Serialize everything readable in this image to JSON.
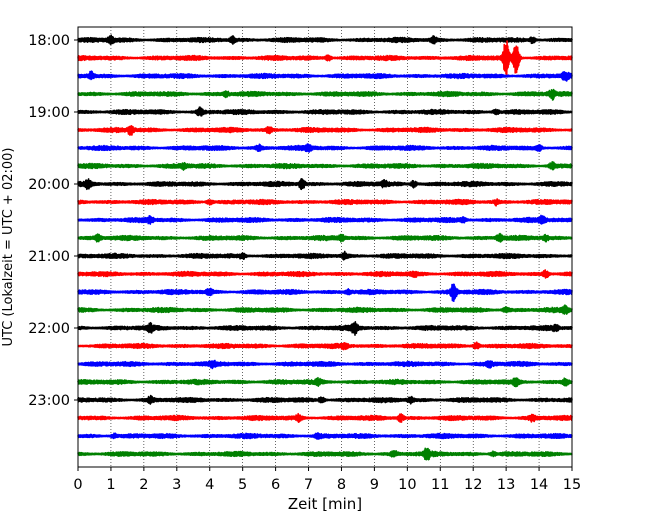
{
  "chart_data": {
    "type": "line",
    "title": "",
    "xlabel": "Zeit  [min]",
    "ylabel": "UTC (Lokalzeit = UTC + 02:00)",
    "xlim": [
      0,
      15
    ],
    "x_ticks": [
      0,
      1,
      2,
      3,
      4,
      5,
      6,
      7,
      8,
      9,
      10,
      11,
      12,
      13,
      14,
      15
    ],
    "y_tick_labels": [
      "18:00",
      "19:00",
      "20:00",
      "21:00",
      "22:00",
      "23:00"
    ],
    "grid": "vertical dotted",
    "trace_interval_minutes": 15,
    "trace_colors": [
      "#000000",
      "#ff0000",
      "#0000ff",
      "#008000"
    ],
    "series": [
      {
        "start": "18:00",
        "color": "#000000",
        "events": [
          {
            "x": 1.0,
            "amp": 1.4
          },
          {
            "x": 4.7,
            "amp": 1.3
          },
          {
            "x": 10.8,
            "amp": 1.4
          },
          {
            "x": 13.8,
            "amp": 1.2
          }
        ]
      },
      {
        "start": "18:15",
        "color": "#ff0000",
        "events": [
          {
            "x": 13.0,
            "amp": 8.0
          },
          {
            "x": 13.3,
            "amp": 7.0
          },
          {
            "x": 7.6,
            "amp": 1.2
          }
        ]
      },
      {
        "start": "18:30",
        "color": "#0000ff",
        "events": [
          {
            "x": 0.4,
            "amp": 1.6
          },
          {
            "x": 14.8,
            "amp": 1.6
          }
        ]
      },
      {
        "start": "18:45",
        "color": "#008000",
        "events": [
          {
            "x": 14.4,
            "amp": 1.8
          },
          {
            "x": 4.5,
            "amp": 1.1
          }
        ]
      },
      {
        "start": "19:00",
        "color": "#000000",
        "events": [
          {
            "x": 3.7,
            "amp": 1.6
          },
          {
            "x": 12.7,
            "amp": 1.3
          }
        ]
      },
      {
        "start": "19:15",
        "color": "#ff0000",
        "events": [
          {
            "x": 1.6,
            "amp": 1.8
          },
          {
            "x": 5.8,
            "amp": 1.2
          }
        ]
      },
      {
        "start": "19:30",
        "color": "#0000ff",
        "events": [
          {
            "x": 5.5,
            "amp": 1.1
          },
          {
            "x": 7.0,
            "amp": 1.2
          },
          {
            "x": 14.0,
            "amp": 1.1
          }
        ]
      },
      {
        "start": "19:45",
        "color": "#008000",
        "events": [
          {
            "x": 14.4,
            "amp": 1.4
          },
          {
            "x": 3.2,
            "amp": 1.0
          }
        ]
      },
      {
        "start": "20:00",
        "color": "#000000",
        "events": [
          {
            "x": 0.3,
            "amp": 1.6
          },
          {
            "x": 6.8,
            "amp": 2.2
          },
          {
            "x": 10.2,
            "amp": 1.5
          },
          {
            "x": 9.3,
            "amp": 1.1
          }
        ]
      },
      {
        "start": "20:15",
        "color": "#ff0000",
        "events": [
          {
            "x": 4.0,
            "amp": 1.1
          },
          {
            "x": 12.7,
            "amp": 1.1
          }
        ]
      },
      {
        "start": "20:30",
        "color": "#0000ff",
        "events": [
          {
            "x": 2.2,
            "amp": 1.2
          },
          {
            "x": 14.1,
            "amp": 1.5
          },
          {
            "x": 11.7,
            "amp": 1.0
          }
        ]
      },
      {
        "start": "20:45",
        "color": "#008000",
        "events": [
          {
            "x": 0.6,
            "amp": 1.2
          },
          {
            "x": 8.0,
            "amp": 1.2
          },
          {
            "x": 12.8,
            "amp": 1.5
          },
          {
            "x": 14.2,
            "amp": 1.1
          }
        ]
      },
      {
        "start": "21:00",
        "color": "#000000",
        "events": [
          {
            "x": 8.1,
            "amp": 1.5
          },
          {
            "x": 5.0,
            "amp": 1.1
          }
        ]
      },
      {
        "start": "21:15",
        "color": "#ff0000",
        "events": [
          {
            "x": 14.2,
            "amp": 1.6
          },
          {
            "x": 10.2,
            "amp": 1.1
          }
        ]
      },
      {
        "start": "21:30",
        "color": "#0000ff",
        "events": [
          {
            "x": 11.4,
            "amp": 3.6
          },
          {
            "x": 4.0,
            "amp": 1.2
          },
          {
            "x": 8.2,
            "amp": 1.1
          }
        ]
      },
      {
        "start": "21:45",
        "color": "#008000",
        "events": [
          {
            "x": 14.8,
            "amp": 1.5
          },
          {
            "x": 13.0,
            "amp": 1.1
          }
        ]
      },
      {
        "start": "22:00",
        "color": "#000000",
        "events": [
          {
            "x": 8.4,
            "amp": 2.3
          },
          {
            "x": 2.2,
            "amp": 1.3
          },
          {
            "x": 14.5,
            "amp": 1.1
          }
        ]
      },
      {
        "start": "22:15",
        "color": "#ff0000",
        "events": [
          {
            "x": 12.1,
            "amp": 1.6
          },
          {
            "x": 8.1,
            "amp": 1.1
          }
        ]
      },
      {
        "start": "22:30",
        "color": "#0000ff",
        "events": [
          {
            "x": 4.1,
            "amp": 1.0
          },
          {
            "x": 12.5,
            "amp": 1.0
          }
        ]
      },
      {
        "start": "22:45",
        "color": "#008000",
        "events": [
          {
            "x": 13.3,
            "amp": 1.4
          },
          {
            "x": 14.8,
            "amp": 1.4
          },
          {
            "x": 7.3,
            "amp": 1.1
          }
        ]
      },
      {
        "start": "23:00",
        "color": "#000000",
        "events": [
          {
            "x": 2.2,
            "amp": 1.3
          },
          {
            "x": 7.4,
            "amp": 1.3
          },
          {
            "x": 10.1,
            "amp": 1.2
          }
        ]
      },
      {
        "start": "23:15",
        "color": "#ff0000",
        "events": [
          {
            "x": 6.7,
            "amp": 1.4
          },
          {
            "x": 9.8,
            "amp": 1.5
          },
          {
            "x": 13.8,
            "amp": 1.2
          }
        ]
      },
      {
        "start": "23:30",
        "color": "#0000ff",
        "events": [
          {
            "x": 7.3,
            "amp": 1.2
          },
          {
            "x": 1.1,
            "amp": 1.0
          }
        ]
      },
      {
        "start": "23:45",
        "color": "#008000",
        "events": [
          {
            "x": 10.6,
            "amp": 2.3
          },
          {
            "x": 9.6,
            "amp": 1.2
          },
          {
            "x": 12.6,
            "amp": 1.0
          }
        ]
      }
    ]
  }
}
